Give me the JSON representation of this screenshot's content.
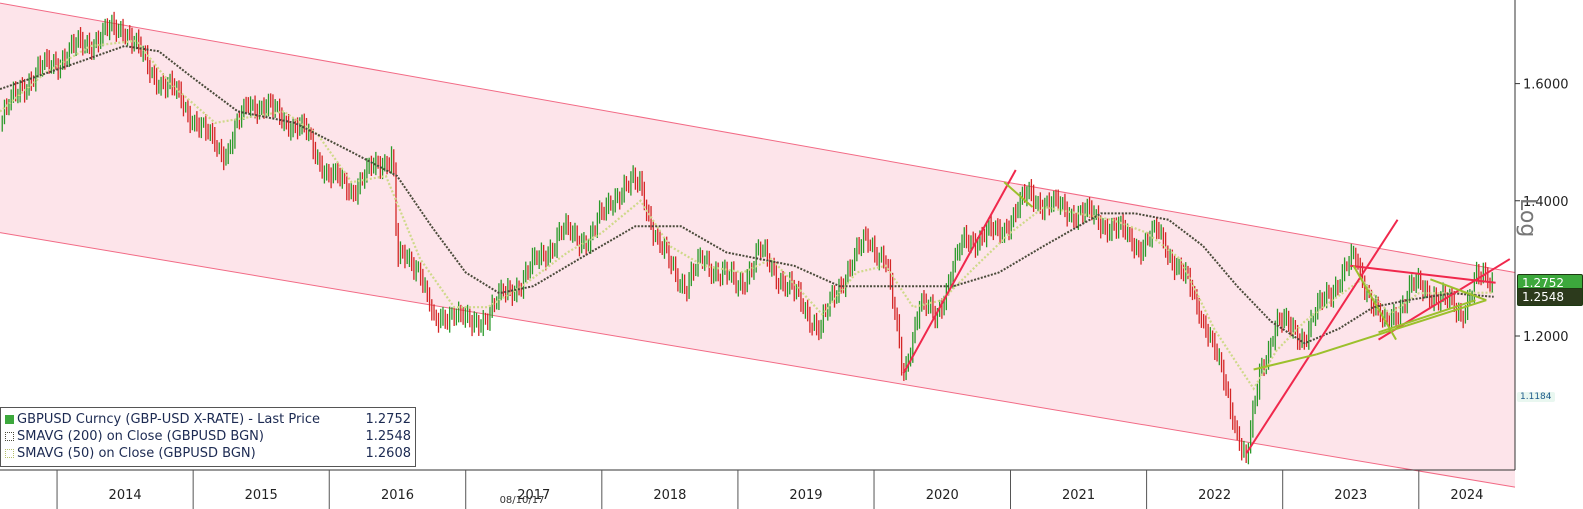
{
  "chart_data": {
    "type": "line",
    "title": "",
    "y_scale": "log",
    "y_axis_side": "right",
    "ylim": [
      1.03,
      1.76
    ],
    "xlim": [
      "2013-08-01",
      "2024-09-15"
    ],
    "year_ticks": [
      "2014",
      "2015",
      "2016",
      "2017",
      "2018",
      "2019",
      "2020",
      "2021",
      "2022",
      "2023",
      "2024"
    ],
    "y_ticks": [
      1.6,
      1.4,
      1.2
    ],
    "y_tick_labels": [
      "1.6000",
      "1.4000",
      "1.2000"
    ],
    "axis_scale_label": "Log",
    "date_stamp": "08/10/17",
    "colors": {
      "up_bar": "#2a9a2a",
      "down_bar": "#d42626",
      "sma200": "#4a4a3a",
      "sma50": "#cfd98a",
      "channel_fill": "#fde4ea",
      "channel_line": "#f26a85",
      "trend_red": "#f0284c",
      "trend_green": "#9cc02c",
      "last_price_tag": "#3ca83c",
      "sma_tag": "#2c3a1c"
    },
    "series": [
      {
        "name": "GBPUSD Curncy (GBP-USD X-RATE) - Last Price",
        "last": "1.2752",
        "marker": "#3ca83c",
        "points": [
          [
            "2013-08-01",
            1.53
          ],
          [
            "2013-10-01",
            1.6
          ],
          [
            "2013-12-01",
            1.63
          ],
          [
            "2014-03-01",
            1.67
          ],
          [
            "2014-07-01",
            1.71
          ],
          [
            "2014-09-01",
            1.63
          ],
          [
            "2014-12-01",
            1.57
          ],
          [
            "2015-02-01",
            1.51
          ],
          [
            "2015-04-01",
            1.48
          ],
          [
            "2015-06-01",
            1.57
          ],
          [
            "2015-09-01",
            1.54
          ],
          [
            "2015-11-01",
            1.51
          ],
          [
            "2016-01-01",
            1.44
          ],
          [
            "2016-03-01",
            1.42
          ],
          [
            "2016-06-20",
            1.48
          ],
          [
            "2016-07-01",
            1.31
          ],
          [
            "2016-09-01",
            1.3
          ],
          [
            "2016-10-10",
            1.21
          ],
          [
            "2016-12-01",
            1.24
          ],
          [
            "2017-01-15",
            1.21
          ],
          [
            "2017-04-01",
            1.25
          ],
          [
            "2017-06-01",
            1.28
          ],
          [
            "2017-09-15",
            1.35
          ],
          [
            "2017-12-01",
            1.34
          ],
          [
            "2018-02-01",
            1.41
          ],
          [
            "2018-04-15",
            1.43
          ],
          [
            "2018-06-01",
            1.33
          ],
          [
            "2018-08-15",
            1.27
          ],
          [
            "2018-10-01",
            1.31
          ],
          [
            "2019-01-01",
            1.27
          ],
          [
            "2019-03-01",
            1.32
          ],
          [
            "2019-05-15",
            1.27
          ],
          [
            "2019-08-10",
            1.21
          ],
          [
            "2019-10-15",
            1.29
          ],
          [
            "2019-12-15",
            1.34
          ],
          [
            "2020-02-01",
            1.31
          ],
          [
            "2020-03-20",
            1.15
          ],
          [
            "2020-05-01",
            1.24
          ],
          [
            "2020-06-15",
            1.23
          ],
          [
            "2020-09-01",
            1.34
          ],
          [
            "2020-12-01",
            1.35
          ],
          [
            "2021-02-20",
            1.41
          ],
          [
            "2021-05-01",
            1.39
          ],
          [
            "2021-07-15",
            1.38
          ],
          [
            "2021-10-01",
            1.36
          ],
          [
            "2021-12-15",
            1.33
          ],
          [
            "2022-02-01",
            1.35
          ],
          [
            "2022-04-15",
            1.28
          ],
          [
            "2022-06-15",
            1.21
          ],
          [
            "2022-09-26",
            1.04
          ],
          [
            "2022-11-01",
            1.15
          ],
          [
            "2022-12-15",
            1.22
          ],
          [
            "2023-03-01",
            1.2
          ],
          [
            "2023-05-01",
            1.26
          ],
          [
            "2023-07-14",
            1.31
          ],
          [
            "2023-10-01",
            1.21
          ],
          [
            "2023-12-15",
            1.27
          ],
          [
            "2024-02-15",
            1.26
          ],
          [
            "2024-04-22",
            1.23
          ],
          [
            "2024-06-01",
            1.28
          ],
          [
            "2024-07-20",
            1.2752
          ]
        ]
      },
      {
        "name": "SMAVG (200) on Close (GBPUSD BGN)",
        "last": "1.2548",
        "marker": "#4a4a3a",
        "points": [
          [
            "2013-08-01",
            1.59
          ],
          [
            "2014-03-01",
            1.64
          ],
          [
            "2014-07-01",
            1.67
          ],
          [
            "2014-10-01",
            1.66
          ],
          [
            "2015-01-01",
            1.61
          ],
          [
            "2015-05-01",
            1.55
          ],
          [
            "2015-10-01",
            1.53
          ],
          [
            "2016-03-01",
            1.48
          ],
          [
            "2016-07-01",
            1.44
          ],
          [
            "2016-10-01",
            1.36
          ],
          [
            "2017-01-01",
            1.29
          ],
          [
            "2017-04-01",
            1.26
          ],
          [
            "2017-07-01",
            1.27
          ],
          [
            "2017-12-01",
            1.32
          ],
          [
            "2018-04-01",
            1.36
          ],
          [
            "2018-08-01",
            1.36
          ],
          [
            "2018-12-01",
            1.32
          ],
          [
            "2019-06-01",
            1.3
          ],
          [
            "2019-10-01",
            1.27
          ],
          [
            "2020-01-01",
            1.27
          ],
          [
            "2020-04-01",
            1.27
          ],
          [
            "2020-08-01",
            1.27
          ],
          [
            "2020-12-01",
            1.29
          ],
          [
            "2021-04-01",
            1.33
          ],
          [
            "2021-09-01",
            1.38
          ],
          [
            "2021-12-01",
            1.38
          ],
          [
            "2022-03-01",
            1.37
          ],
          [
            "2022-06-01",
            1.33
          ],
          [
            "2022-09-01",
            1.27
          ],
          [
            "2022-12-01",
            1.22
          ],
          [
            "2023-03-01",
            1.19
          ],
          [
            "2023-06-01",
            1.21
          ],
          [
            "2023-09-01",
            1.24
          ],
          [
            "2023-12-01",
            1.25
          ],
          [
            "2024-04-01",
            1.26
          ],
          [
            "2024-07-20",
            1.2548
          ]
        ]
      },
      {
        "name": "SMAVG (50) on Close (GBPUSD BGN)",
        "last": "1.2608",
        "marker": "#cfd98a",
        "points": [
          [
            "2013-08-01",
            1.55
          ],
          [
            "2013-12-01",
            1.62
          ],
          [
            "2014-04-01",
            1.67
          ],
          [
            "2014-08-01",
            1.68
          ],
          [
            "2014-11-01",
            1.6
          ],
          [
            "2015-03-01",
            1.53
          ],
          [
            "2015-06-01",
            1.54
          ],
          [
            "2015-09-01",
            1.55
          ],
          [
            "2015-12-01",
            1.51
          ],
          [
            "2016-03-01",
            1.43
          ],
          [
            "2016-06-01",
            1.44
          ],
          [
            "2016-09-01",
            1.31
          ],
          [
            "2016-12-01",
            1.24
          ],
          [
            "2017-03-01",
            1.24
          ],
          [
            "2017-06-01",
            1.27
          ],
          [
            "2017-10-01",
            1.32
          ],
          [
            "2018-01-01",
            1.35
          ],
          [
            "2018-04-15",
            1.4
          ],
          [
            "2018-07-01",
            1.33
          ],
          [
            "2018-10-01",
            1.3
          ],
          [
            "2019-01-15",
            1.29
          ],
          [
            "2019-04-01",
            1.31
          ],
          [
            "2019-08-15",
            1.23
          ],
          [
            "2019-11-15",
            1.29
          ],
          [
            "2020-02-01",
            1.3
          ],
          [
            "2020-04-15",
            1.24
          ],
          [
            "2020-07-01",
            1.25
          ],
          [
            "2020-10-01",
            1.3
          ],
          [
            "2021-01-01",
            1.35
          ],
          [
            "2021-04-01",
            1.39
          ],
          [
            "2021-07-01",
            1.38
          ],
          [
            "2021-10-01",
            1.37
          ],
          [
            "2022-01-01",
            1.35
          ],
          [
            "2022-04-01",
            1.31
          ],
          [
            "2022-07-01",
            1.21
          ],
          [
            "2022-10-15",
            1.13
          ],
          [
            "2022-12-15",
            1.18
          ],
          [
            "2023-03-01",
            1.22
          ],
          [
            "2023-05-15",
            1.25
          ],
          [
            "2023-08-01",
            1.28
          ],
          [
            "2023-10-15",
            1.23
          ],
          [
            "2024-01-01",
            1.26
          ],
          [
            "2024-04-01",
            1.26
          ],
          [
            "2024-07-20",
            1.2608
          ]
        ]
      }
    ],
    "annotations": {
      "channel": {
        "upper": [
          [
            "2014-07-01",
            1.71
          ],
          [
            "2024-09-15",
            1.29
          ]
        ],
        "lower": [
          [
            "2013-08-01",
            1.35
          ],
          [
            "2024-05-01",
            1.02
          ]
        ]
      },
      "red_trendlines": [
        [
          [
            "2020-03-20",
            1.15
          ],
          [
            "2021-01-15",
            1.45
          ]
        ],
        [
          [
            "2022-09-26",
            1.05
          ],
          [
            "2023-11-05",
            1.37
          ]
        ],
        [
          [
            "2023-07-01",
            1.3
          ],
          [
            "2024-07-25",
            1.275
          ]
        ],
        [
          [
            "2023-09-15",
            1.195
          ],
          [
            "2024-09-01",
            1.31
          ]
        ]
      ],
      "green_trendlines": [
        [
          [
            "2020-12-15",
            1.43
          ],
          [
            "2021-03-01",
            1.39
          ]
        ],
        [
          [
            "2022-10-15",
            1.155
          ],
          [
            "2023-04-01",
            1.175
          ]
        ],
        [
          [
            "2023-04-01",
            1.175
          ],
          [
            "2024-06-30",
            1.25
          ]
        ],
        [
          [
            "2023-07-10",
            1.3
          ],
          [
            "2023-11-01",
            1.195
          ]
        ],
        [
          [
            "2024-02-01",
            1.28
          ],
          [
            "2024-06-30",
            1.25
          ]
        ],
        [
          [
            "2023-09-15",
            1.205
          ],
          [
            "2024-06-01",
            1.25
          ]
        ]
      ]
    },
    "price_tags": [
      {
        "label": "1.2752",
        "color": "#3ca83c",
        "y": 1.2752
      },
      {
        "label": "1.2548",
        "color": "#2c3a1c",
        "y": 1.2548
      },
      {
        "label": "1.1184",
        "color": "#e9f7f0",
        "y": 1.1184
      }
    ]
  },
  "legend": {
    "rows": [
      {
        "label": "GBPUSD Curncy (GBP-USD X-RATE) - Last Price",
        "value": "1.2752"
      },
      {
        "label": "SMAVG (200)  on Close (GBPUSD BGN)",
        "value": "1.2548"
      },
      {
        "label": "SMAVG (50)  on Close (GBPUSD BGN)",
        "value": "1.2608"
      }
    ]
  }
}
